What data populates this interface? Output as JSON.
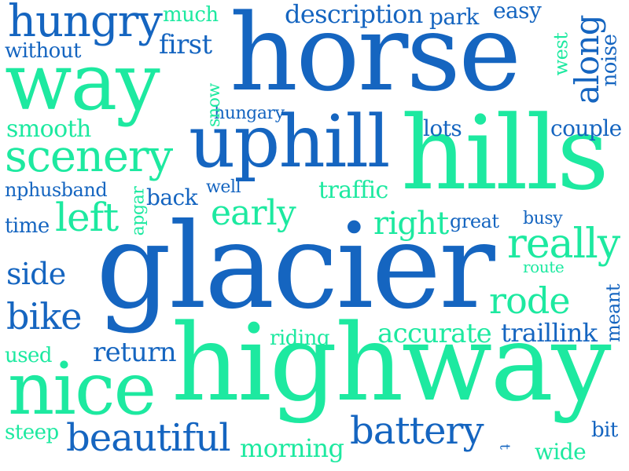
{
  "word_cloud": {
    "words": [
      {
        "text": "glacier",
        "color": "#1565c0"
      },
      {
        "text": "highway",
        "color": "#1de9a0"
      },
      {
        "text": "horse",
        "color": "#1565c0"
      },
      {
        "text": "hills",
        "color": "#1de9a0"
      },
      {
        "text": "way",
        "color": "#1de9a0"
      },
      {
        "text": "uphill",
        "color": "#1565c0"
      },
      {
        "text": "nice",
        "color": "#1de9a0"
      },
      {
        "text": "hungry",
        "color": "#1565c0"
      },
      {
        "text": "scenery",
        "color": "#1de9a0"
      },
      {
        "text": "battery",
        "color": "#1565c0"
      },
      {
        "text": "beautiful",
        "color": "#1565c0"
      },
      {
        "text": "really",
        "color": "#1de9a0"
      },
      {
        "text": "along",
        "color": "#1565c0"
      },
      {
        "text": "rode",
        "color": "#1de9a0"
      },
      {
        "text": "left",
        "color": "#1de9a0"
      },
      {
        "text": "early",
        "color": "#1de9a0"
      },
      {
        "text": "right",
        "color": "#1de9a0"
      },
      {
        "text": "bike",
        "color": "#1565c0"
      },
      {
        "text": "description",
        "color": "#1565c0"
      },
      {
        "text": "accurate",
        "color": "#1de9a0"
      },
      {
        "text": "traillink",
        "color": "#1565c0"
      },
      {
        "text": "smooth",
        "color": "#1de9a0"
      },
      {
        "text": "morning",
        "color": "#1de9a0"
      },
      {
        "text": "return",
        "color": "#1565c0"
      },
      {
        "text": "first",
        "color": "#1565c0"
      },
      {
        "text": "side",
        "color": "#1565c0"
      },
      {
        "text": "couple",
        "color": "#1565c0"
      },
      {
        "text": "traffic",
        "color": "#1de9a0"
      },
      {
        "text": "without",
        "color": "#1565c0"
      },
      {
        "text": "easy",
        "color": "#1565c0"
      },
      {
        "text": "park",
        "color": "#1565c0"
      },
      {
        "text": "much",
        "color": "#1de9a0"
      },
      {
        "text": "lots",
        "color": "#1565c0"
      },
      {
        "text": "time",
        "color": "#1565c0"
      },
      {
        "text": "nphusband",
        "color": "#1565c0"
      },
      {
        "text": "back",
        "color": "#1565c0"
      },
      {
        "text": "riding",
        "color": "#1de9a0"
      },
      {
        "text": "used",
        "color": "#1de9a0"
      },
      {
        "text": "steep",
        "color": "#1de9a0"
      },
      {
        "text": "wide",
        "color": "#1de9a0"
      },
      {
        "text": "bit",
        "color": "#1565c0"
      },
      {
        "text": "great",
        "color": "#1565c0"
      },
      {
        "text": "busy",
        "color": "#1565c0"
      },
      {
        "text": "route",
        "color": "#1de9a0"
      },
      {
        "text": "well",
        "color": "#1565c0"
      },
      {
        "text": "hungary",
        "color": "#1565c0"
      },
      {
        "text": "west",
        "color": "#1de9a0"
      },
      {
        "text": "noise",
        "color": "#1565c0"
      },
      {
        "text": "snow",
        "color": "#1de9a0"
      },
      {
        "text": "apgar",
        "color": "#1de9a0"
      },
      {
        "text": "meant",
        "color": "#1565c0"
      },
      {
        "text": "t",
        "color": "#1565c0"
      }
    ]
  }
}
